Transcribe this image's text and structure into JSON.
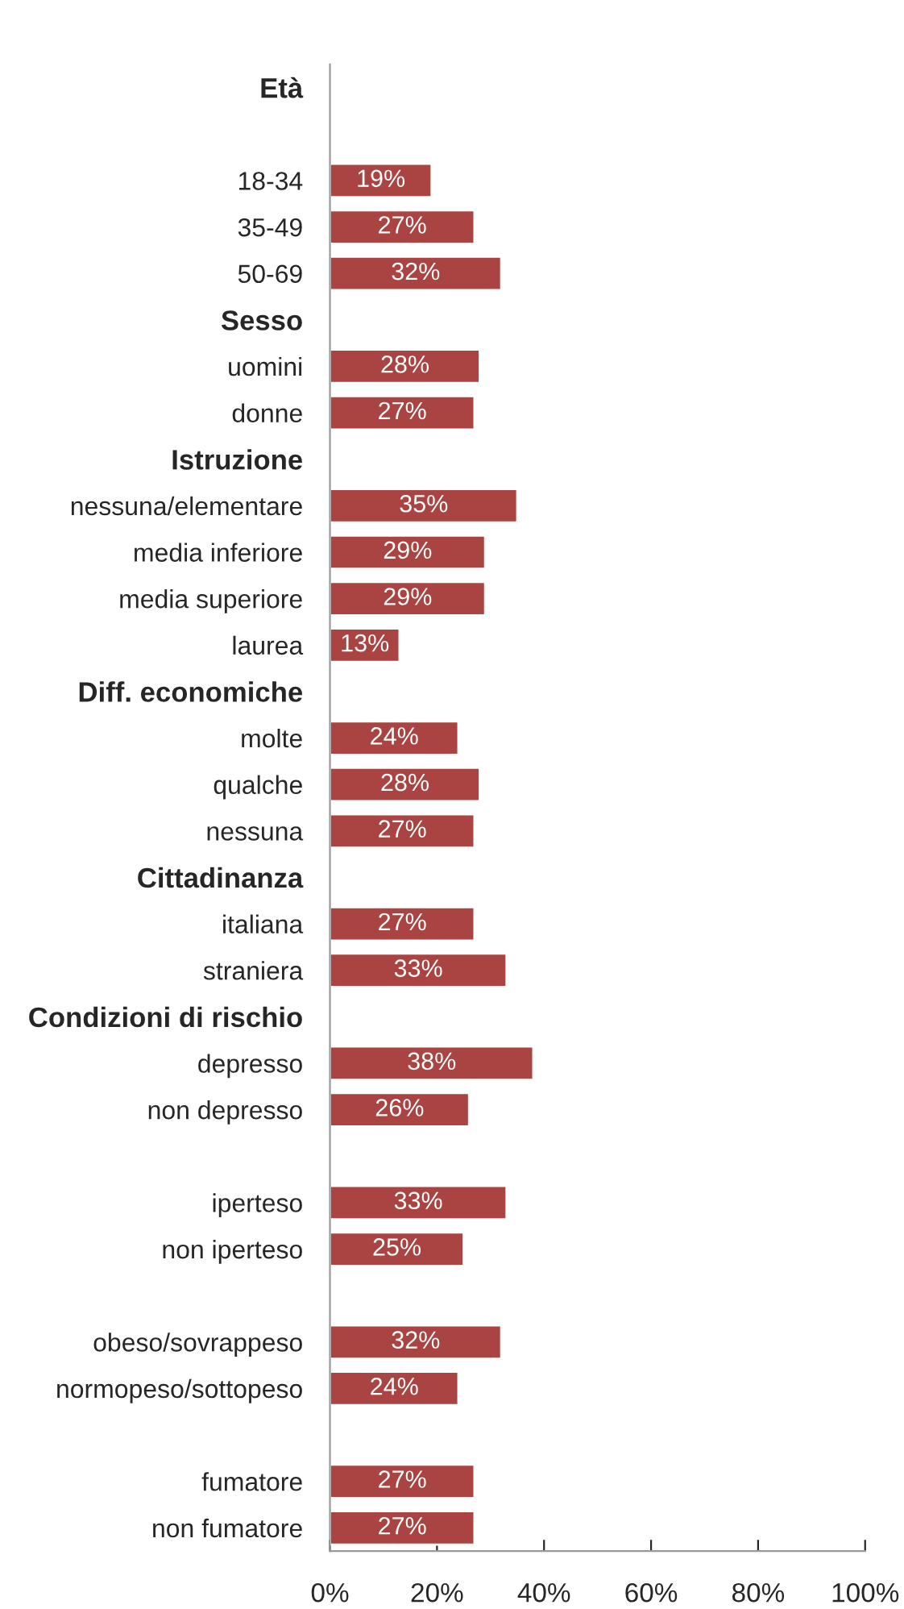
{
  "chart_data": {
    "type": "bar",
    "orientation": "horizontal",
    "value_labels": [
      null,
      null,
      "19%",
      "27%",
      "32%",
      null,
      "28%",
      "27%",
      null,
      "35%",
      "29%",
      "29%",
      "13%",
      null,
      "24%",
      "28%",
      "27%",
      null,
      "27%",
      "33%",
      null,
      "38%",
      "26%",
      null,
      "33%",
      "25%",
      null,
      "32%",
      "24%",
      null,
      "27%",
      "27%"
    ],
    "grid": false,
    "color": "#a94442",
    "categories": [
      "Età",
      null,
      "18-34",
      "35-49",
      "50-69",
      "Sesso",
      "uomini",
      "donne",
      "Istruzione",
      "nessuna/elementare",
      "media inferiore",
      "media superiore",
      "laurea",
      "Diff. economiche",
      "molte",
      "qualche",
      "nessuna",
      "Cittadinanza",
      "italiana",
      "straniera",
      "Condizioni di rischio",
      "depresso",
      "non depresso",
      null,
      "iperteso",
      "non iperteso",
      null,
      "obeso/sovrappeso",
      "normopeso/sottopeso",
      null,
      "fumatore",
      "non fumatore"
    ],
    "values": [
      null,
      null,
      19,
      27,
      32,
      null,
      28,
      27,
      null,
      35,
      29,
      29,
      13,
      null,
      24,
      28,
      27,
      null,
      27,
      33,
      null,
      38,
      26,
      null,
      33,
      25,
      null,
      32,
      24,
      null,
      27,
      27
    ],
    "xlim": [
      0,
      100
    ],
    "xticks": [
      {
        "value": 0,
        "label": "0%"
      },
      {
        "value": 20,
        "label": "20%"
      },
      {
        "value": 40,
        "label": "40%"
      },
      {
        "value": 60,
        "label": "60%"
      },
      {
        "value": 80,
        "label": "80%"
      },
      {
        "value": 100,
        "label": "100%"
      }
    ]
  }
}
